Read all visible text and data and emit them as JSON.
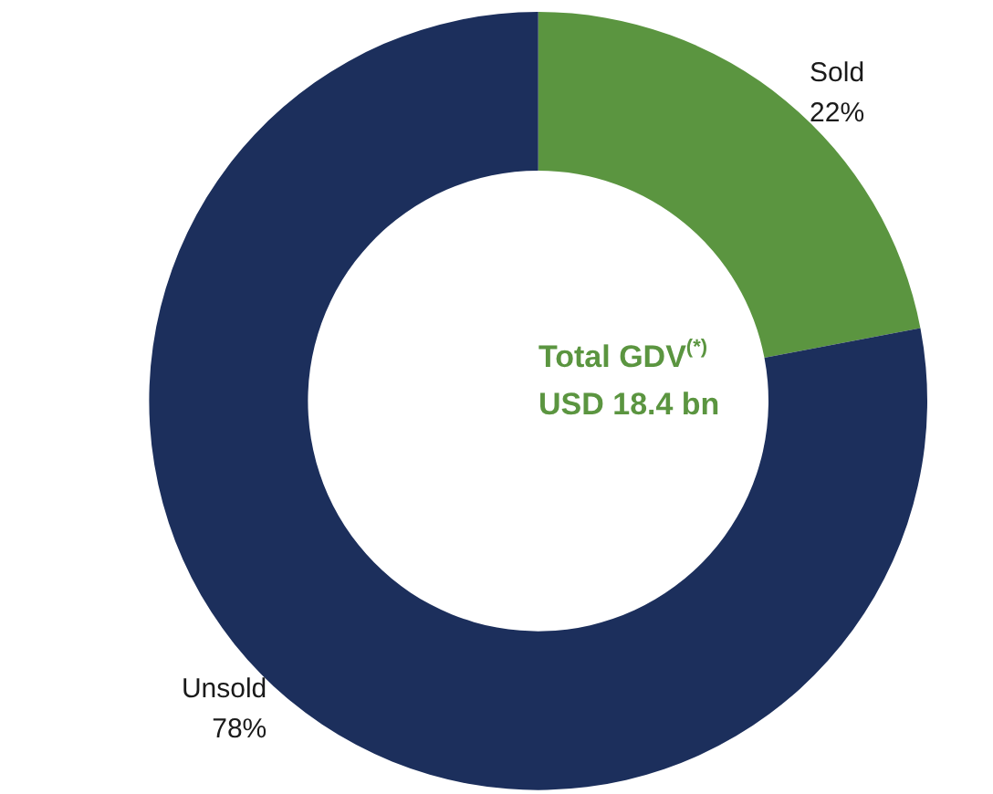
{
  "chart_data": {
    "type": "donut",
    "categories": [
      "Sold",
      "Unsold"
    ],
    "values": [
      22,
      78
    ],
    "colors": [
      "#5b9540",
      "#1c2f5c"
    ],
    "value_labels": [
      "22%",
      "78%"
    ],
    "annotations": [
      "Total GDV$^{(*)}$",
      "USD 18.4 bn"
    ],
    "legend": false
  }
}
